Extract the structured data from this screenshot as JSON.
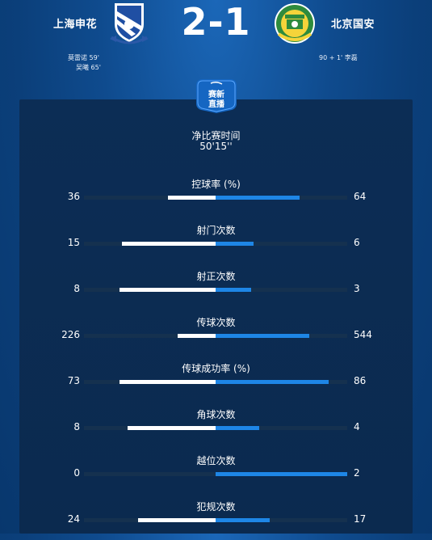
{
  "match": {
    "home_team": "上海申花",
    "away_team": "北京国安",
    "score": "2-1",
    "home_scorers": [
      "莫雷诺 59'",
      "吴曦 65'"
    ],
    "away_scorers": [
      "90 + 1' 李磊"
    ]
  },
  "badge_text": [
    "赛新",
    "直播"
  ],
  "clock": {
    "label": "净比赛时间",
    "value": "50'15''"
  },
  "colors": {
    "home_bar": "#ffffff",
    "away_bar": "#1e86e6",
    "track": "#15314f"
  },
  "stats": [
    {
      "title": "控球率 (%)",
      "home": 36,
      "away": 64,
      "home_share": 0.36,
      "away_share": 0.64
    },
    {
      "title": "射门次数",
      "home": 15,
      "away": 6,
      "home_share": 0.71,
      "away_share": 0.29
    },
    {
      "title": "射正次数",
      "home": 8,
      "away": 3,
      "home_share": 0.73,
      "away_share": 0.27
    },
    {
      "title": "传球次数",
      "home": 226,
      "away": 544,
      "home_share": 0.29,
      "away_share": 0.71
    },
    {
      "title": "传球成功率 (%)",
      "home": 73,
      "away": 86,
      "home_share": 0.73,
      "away_share": 0.86
    },
    {
      "title": "角球次数",
      "home": 8,
      "away": 4,
      "home_share": 0.67,
      "away_share": 0.33
    },
    {
      "title": "越位次数",
      "home": 0,
      "away": 2,
      "home_share": 0.0,
      "away_share": 1.0
    },
    {
      "title": "犯规次数",
      "home": 24,
      "away": 17,
      "home_share": 0.59,
      "away_share": 0.41
    }
  ]
}
